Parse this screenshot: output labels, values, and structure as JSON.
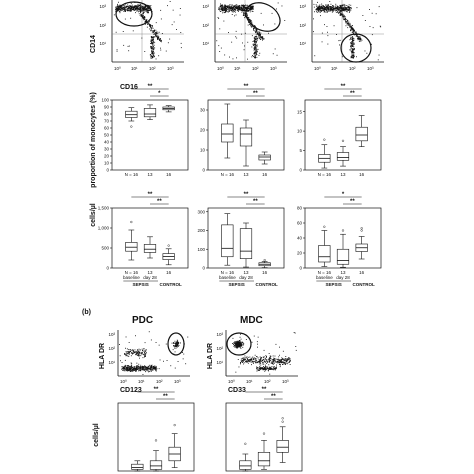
{
  "panel_b_label": "(b)",
  "flow_top": {
    "ylabel": "CD14",
    "xlabel": "CD16",
    "x_ticks": [
      "10⁰",
      "10¹",
      "10²",
      "10³"
    ],
    "y_ticks": [
      "10⁰",
      "10¹",
      "10²",
      "10³"
    ]
  },
  "flow_bottom": [
    {
      "title": "PDC",
      "ylabel": "HLA DR",
      "xlabel": "CD123",
      "ticks": [
        "10⁰",
        "10¹",
        "10²",
        "10³"
      ]
    },
    {
      "title": "MDC",
      "ylabel": "HLA DR",
      "xlabel": "CD33",
      "ticks": [
        "10⁰",
        "10¹",
        "10²",
        "10³"
      ]
    }
  ],
  "row_labels": {
    "proportion": "proportion of monocytes (%)",
    "cells": "cells/µl"
  },
  "group_labels": {
    "n": [
      "N = 16",
      "13",
      "16"
    ],
    "time": [
      "baseline",
      "day 28"
    ],
    "sepsis": "SEPSIS",
    "control": "CONTROL"
  },
  "chart_data": [
    {
      "type": "box",
      "row": "proportion",
      "col": 0,
      "ylim": [
        0,
        100
      ],
      "yticks": [
        0,
        10,
        20,
        30,
        40,
        50,
        60,
        70,
        80,
        90,
        100
      ],
      "ytick_labels": [
        "0",
        "10",
        "20",
        "30",
        "40",
        "50",
        "60",
        "70",
        "80",
        "90",
        "100"
      ],
      "categories": [
        "baseline",
        "day 28",
        "control"
      ],
      "boxes": [
        {
          "min": 70,
          "q1": 75,
          "median": 79,
          "q3": 84,
          "max": 89,
          "outliers": [
            62
          ]
        },
        {
          "min": 72,
          "q1": 76,
          "median": 80,
          "q3": 88,
          "max": 93,
          "outliers": []
        },
        {
          "min": 83,
          "q1": 86,
          "median": 88,
          "q3": 90,
          "max": 92,
          "outliers": []
        }
      ],
      "significance": [
        {
          "from": 0,
          "to": 2,
          "label": "**"
        },
        {
          "from": 1,
          "to": 2,
          "label": "*"
        }
      ]
    },
    {
      "type": "box",
      "row": "proportion",
      "col": 1,
      "ylim": [
        0,
        35
      ],
      "yticks": [
        0,
        10,
        20,
        30
      ],
      "ytick_labels": [
        "0",
        "10",
        "20",
        "30"
      ],
      "categories": [
        "baseline",
        "day 28",
        "control"
      ],
      "boxes": [
        {
          "min": 6,
          "q1": 14,
          "median": 18,
          "q3": 23,
          "max": 33,
          "outliers": []
        },
        {
          "min": 2,
          "q1": 12,
          "median": 18,
          "q3": 21,
          "max": 25,
          "outliers": []
        },
        {
          "min": 3,
          "q1": 5,
          "median": 6.5,
          "q3": 7.5,
          "max": 9,
          "outliers": []
        }
      ],
      "significance": [
        {
          "from": 0,
          "to": 2,
          "label": "**"
        },
        {
          "from": 1,
          "to": 2,
          "label": "**"
        }
      ]
    },
    {
      "type": "box",
      "row": "proportion",
      "col": 2,
      "ylim": [
        0,
        18
      ],
      "yticks": [
        0,
        5,
        10,
        15
      ],
      "ytick_labels": [
        "0",
        "5",
        "10",
        "15"
      ],
      "categories": [
        "baseline",
        "day 28",
        "control"
      ],
      "boxes": [
        {
          "min": 0.5,
          "q1": 2,
          "median": 3,
          "q3": 4,
          "max": 6.5,
          "outliers": [
            7.8
          ]
        },
        {
          "min": 1,
          "q1": 2.5,
          "median": 3.2,
          "q3": 4.5,
          "max": 6,
          "outliers": [
            7.5
          ]
        },
        {
          "min": 6,
          "q1": 7.5,
          "median": 9,
          "q3": 11,
          "max": 14,
          "outliers": []
        }
      ],
      "significance": [
        {
          "from": 0,
          "to": 2,
          "label": "**"
        },
        {
          "from": 1,
          "to": 2,
          "label": "**"
        }
      ]
    },
    {
      "type": "box",
      "row": "cells",
      "col": 0,
      "ylim": [
        0,
        1500
      ],
      "yticks": [
        0,
        500,
        1000,
        1500
      ],
      "ytick_labels": [
        "0",
        "500",
        "1,000",
        "1,500"
      ],
      "categories": [
        "baseline",
        "day 28",
        "control"
      ],
      "boxes": [
        {
          "min": 200,
          "q1": 420,
          "median": 520,
          "q3": 640,
          "max": 950,
          "outliers": [
            1150
          ]
        },
        {
          "min": 250,
          "q1": 390,
          "median": 470,
          "q3": 590,
          "max": 780,
          "outliers": []
        },
        {
          "min": 80,
          "q1": 210,
          "median": 290,
          "q3": 360,
          "max": 480,
          "outliers": [
            560
          ]
        }
      ],
      "significance": [
        {
          "from": 0,
          "to": 2,
          "label": "**"
        },
        {
          "from": 1,
          "to": 2,
          "label": "**"
        }
      ]
    },
    {
      "type": "box",
      "row": "cells",
      "col": 1,
      "ylim": [
        0,
        320
      ],
      "yticks": [
        0,
        100,
        200,
        300
      ],
      "ytick_labels": [
        "0",
        "100",
        "200",
        "300"
      ],
      "categories": [
        "baseline",
        "day 28",
        "control"
      ],
      "boxes": [
        {
          "min": 15,
          "q1": 60,
          "median": 105,
          "q3": 230,
          "max": 290,
          "outliers": []
        },
        {
          "min": 5,
          "q1": 50,
          "median": 90,
          "q3": 210,
          "max": 240,
          "outliers": []
        },
        {
          "min": 2,
          "q1": 12,
          "median": 20,
          "q3": 28,
          "max": 35,
          "outliers": [
            42
          ]
        }
      ],
      "significance": [
        {
          "from": 0,
          "to": 2,
          "label": "**"
        },
        {
          "from": 1,
          "to": 2,
          "label": "**"
        }
      ]
    },
    {
      "type": "box",
      "row": "cells",
      "col": 2,
      "ylim": [
        0,
        80
      ],
      "yticks": [
        0,
        20,
        40,
        60,
        80
      ],
      "ytick_labels": [
        "0",
        "20",
        "40",
        "60",
        "80"
      ],
      "categories": [
        "baseline",
        "day 28",
        "control"
      ],
      "boxes": [
        {
          "min": 2,
          "q1": 8,
          "median": 15,
          "q3": 30,
          "max": 50,
          "outliers": [
            55
          ]
        },
        {
          "min": 1,
          "q1": 5,
          "median": 10,
          "q3": 25,
          "max": 45,
          "outliers": [
            50
          ]
        },
        {
          "min": 12,
          "q1": 22,
          "median": 27,
          "q3": 32,
          "max": 42,
          "outliers": [
            50,
            53
          ]
        }
      ],
      "significance": [
        {
          "from": 0,
          "to": 2,
          "label": "*"
        },
        {
          "from": 1,
          "to": 2,
          "label": "**"
        }
      ]
    },
    {
      "type": "box",
      "row": "cells-b",
      "col": 0,
      "ylim": [
        0,
        40
      ],
      "yticks": [],
      "ytick_labels": [],
      "categories": [
        "baseline",
        "day 28",
        "control"
      ],
      "boxes": [
        {
          "min": 0,
          "q1": 1,
          "median": 2,
          "q3": 4,
          "max": 6,
          "outliers": []
        },
        {
          "min": 0,
          "q1": 1,
          "median": 3,
          "q3": 6,
          "max": 12,
          "outliers": [
            18
          ]
        },
        {
          "min": 2,
          "q1": 6,
          "median": 10,
          "q3": 14,
          "max": 22,
          "outliers": [
            27
          ]
        }
      ],
      "significance": [
        {
          "from": 0,
          "to": 2,
          "label": "**"
        },
        {
          "from": 1,
          "to": 2,
          "label": "**"
        }
      ]
    },
    {
      "type": "box",
      "row": "cells-b",
      "col": 1,
      "ylim": [
        0,
        40
      ],
      "yticks": [],
      "ytick_labels": [],
      "categories": [
        "baseline",
        "day 28",
        "control"
      ],
      "boxes": [
        {
          "min": 0,
          "q1": 1,
          "median": 3,
          "q3": 6,
          "max": 10,
          "outliers": [
            16
          ]
        },
        {
          "min": 1,
          "q1": 3,
          "median": 6,
          "q3": 11,
          "max": 18,
          "outliers": [
            22
          ]
        },
        {
          "min": 5,
          "q1": 11,
          "median": 14,
          "q3": 18,
          "max": 26,
          "outliers": [
            29,
            31
          ]
        }
      ],
      "significance": [
        {
          "from": 0,
          "to": 2,
          "label": "**"
        },
        {
          "from": 1,
          "to": 2,
          "label": "**"
        }
      ]
    }
  ]
}
